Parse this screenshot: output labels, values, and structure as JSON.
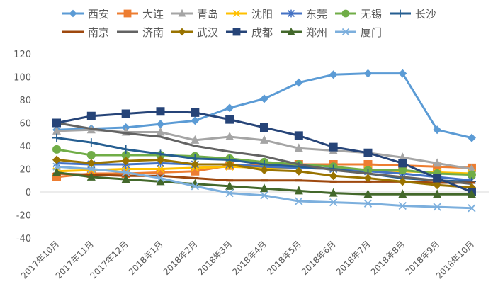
{
  "chart_data": {
    "type": "line",
    "title": "",
    "xlabel": "",
    "ylabel": "",
    "ylim": [
      -40,
      120
    ],
    "yticks": [
      -40,
      -20,
      0,
      20,
      40,
      60,
      80,
      100,
      120
    ],
    "ytick_labels": [
      "-40",
      "-20",
      "0",
      "20",
      "40",
      "60",
      "80",
      "100",
      "120"
    ],
    "grid": false,
    "legend_position": "top",
    "categories": [
      "2017年10月",
      "2017年11月",
      "2017年12月",
      "2018年1月",
      "2018年2月",
      "2018年3月",
      "2018年4月",
      "2018年5月",
      "2018年6月",
      "2018年7月",
      "2018年8月",
      "2018年9月",
      "2018年10月"
    ],
    "series": [
      {
        "name": "西安",
        "color": "#5B9BD5",
        "marker": "diamond",
        "values": [
          54,
          55,
          56,
          59,
          62,
          73,
          81,
          95,
          102,
          103,
          103,
          54,
          47
        ]
      },
      {
        "name": "大连",
        "color": "#ED7D31",
        "marker": "square",
        "values": [
          13,
          16,
          16,
          17,
          18,
          23,
          24,
          24,
          24,
          24,
          23,
          22,
          21
        ]
      },
      {
        "name": "青岛",
        "color": "#A5A5A5",
        "marker": "triangle",
        "values": [
          53,
          54,
          52,
          52,
          45,
          48,
          45,
          38,
          36,
          34,
          30,
          25,
          20
        ]
      },
      {
        "name": "沈阳",
        "color": "#FFC000",
        "marker": "x",
        "values": [
          18,
          19,
          20,
          20,
          21,
          22,
          21,
          21,
          20,
          19,
          18,
          17,
          16
        ]
      },
      {
        "name": "东莞",
        "color": "#4472C4",
        "marker": "star",
        "values": [
          25,
          24,
          24,
          25,
          24,
          24,
          22,
          21,
          20,
          18,
          16,
          13,
          10
        ]
      },
      {
        "name": "无锡",
        "color": "#70AD47",
        "marker": "circle",
        "values": [
          37,
          32,
          32,
          32,
          31,
          29,
          26,
          24,
          22,
          19,
          19,
          16,
          15
        ]
      },
      {
        "name": "长沙",
        "color": "#255E91",
        "marker": "plus",
        "values": [
          47,
          43,
          37,
          33,
          29,
          28,
          24,
          22,
          20,
          16,
          12,
          10,
          9
        ]
      },
      {
        "name": "南京",
        "color": "#9E480E",
        "marker": "dash",
        "values": [
          16,
          15,
          14,
          14,
          12,
          10,
          10,
          10,
          9,
          9,
          9,
          8,
          8
        ]
      },
      {
        "name": "济南",
        "color": "#636363",
        "marker": "none",
        "values": [
          60,
          55,
          51,
          48,
          40,
          35,
          31,
          24,
          19,
          16,
          13,
          10,
          7
        ]
      },
      {
        "name": "武汉",
        "color": "#997300",
        "marker": "diamond",
        "values": [
          28,
          25,
          27,
          28,
          24,
          24,
          19,
          18,
          14,
          12,
          9,
          6,
          4
        ]
      },
      {
        "name": "成都",
        "color": "#264478",
        "marker": "square",
        "values": [
          60,
          66,
          68,
          70,
          69,
          63,
          56,
          49,
          39,
          34,
          25,
          12,
          0
        ]
      },
      {
        "name": "郑州",
        "color": "#43682B",
        "marker": "triangle",
        "values": [
          17,
          13,
          11,
          9,
          7,
          5,
          3,
          1,
          -1,
          -2,
          -2,
          -2,
          -2
        ]
      },
      {
        "name": "厦门",
        "color": "#7CAFDD",
        "marker": "x",
        "values": [
          22,
          20,
          17,
          12,
          5,
          -1,
          -3,
          -8,
          -9,
          -10,
          -12,
          -13,
          -14
        ]
      }
    ]
  }
}
